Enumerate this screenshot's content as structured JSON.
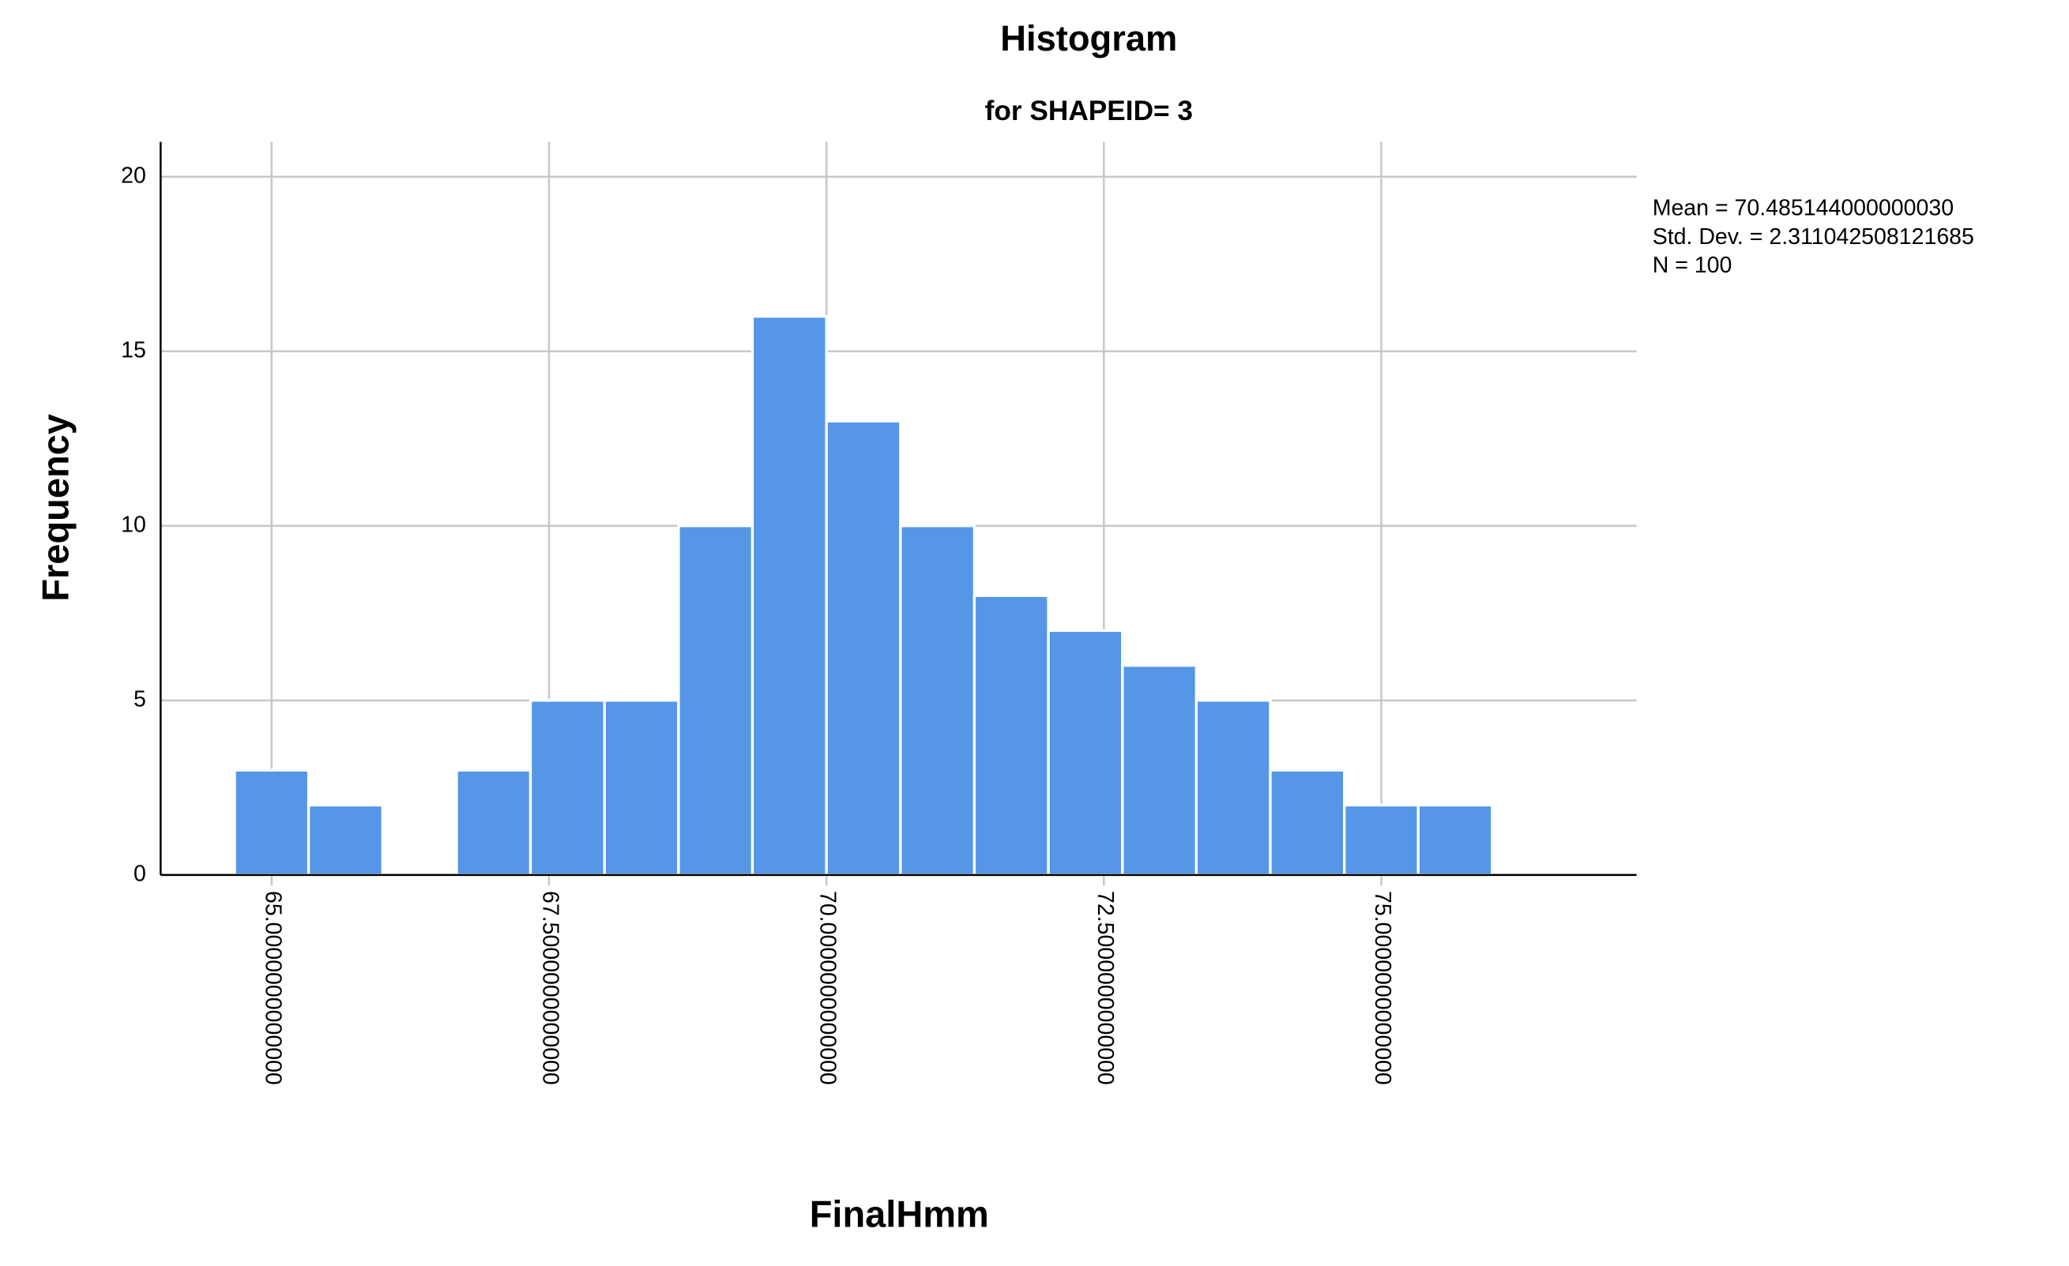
{
  "chart_data": {
    "type": "histogram",
    "title": "Histogram",
    "subtitle": "for SHAPEID= 3",
    "x_label": "FinalHmm",
    "y_label": "Frequency",
    "bins": [
      64.667,
      65.333,
      66,
      66.667,
      67.333,
      68,
      68.667,
      69.333,
      70,
      70.667,
      71.333,
      72,
      72.667,
      73.333,
      74,
      74.667,
      75.333,
      76
    ],
    "counts": [
      3,
      2,
      0,
      3,
      5,
      5,
      10,
      16,
      13,
      10,
      8,
      7,
      6,
      5,
      3,
      2,
      2
    ],
    "color": "#5596e6",
    "xlim": [
      64,
      77.3
    ],
    "ylim": [
      0,
      21
    ],
    "xticks": [
      {
        "value": 65,
        "label": "65.0000000000000"
      },
      {
        "value": 67.5,
        "label": "67.5000000000000"
      },
      {
        "value": 70,
        "label": "70.0000000000000"
      },
      {
        "value": 72.5,
        "label": "72.5000000000000"
      },
      {
        "value": 75,
        "label": "75.0000000000000"
      }
    ],
    "yticks": [
      0,
      5,
      10,
      15,
      20
    ],
    "grid": true,
    "annotations": [
      "Mean = 70.485144000000030",
      "Std. Dev. = 2.311042508121685",
      "N = 100"
    ]
  }
}
